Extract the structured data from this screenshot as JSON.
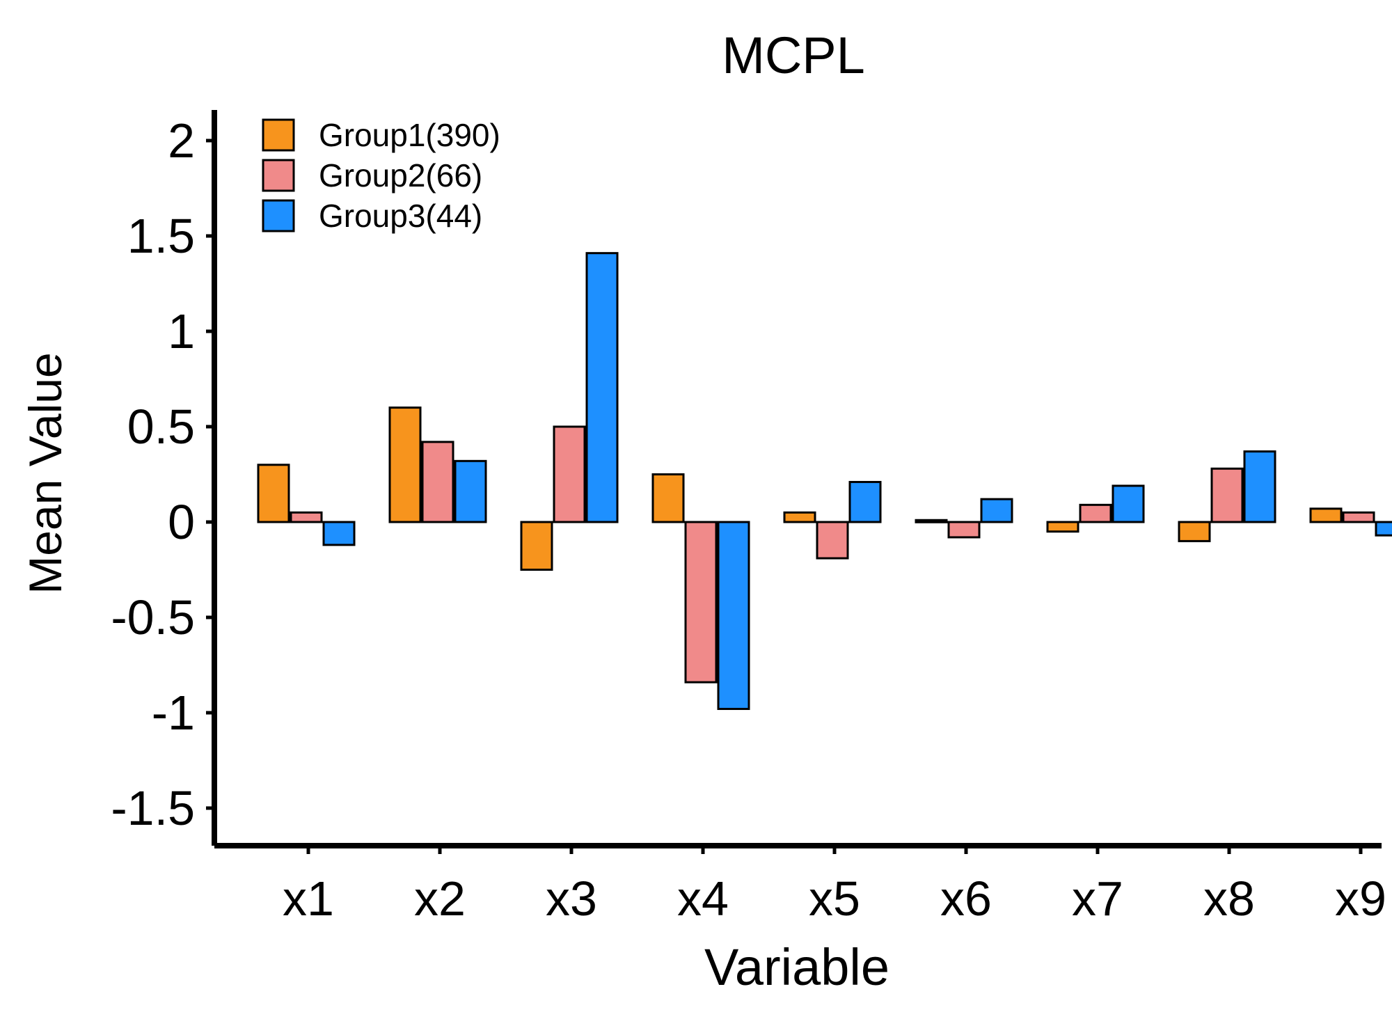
{
  "chart_data": {
    "type": "bar",
    "title": "MCPL",
    "xlabel": "Variable",
    "ylabel": "Mean Value",
    "ylim": [
      -1.65,
      2.15
    ],
    "yticks": [
      -1.5,
      -1,
      -0.5,
      0,
      0.5,
      1,
      1.5,
      2
    ],
    "ytick_labels": [
      "-1.5",
      "-1",
      "-0.5",
      "0",
      "0.5",
      "1",
      "1.5",
      "2"
    ],
    "categories": [
      "x1",
      "x2",
      "x3",
      "x4",
      "x5",
      "x6",
      "x7",
      "x8",
      "x9"
    ],
    "legend_position": "top-left",
    "grid": false,
    "series": [
      {
        "name": "Group1(390)",
        "color": "#F7941D",
        "values": [
          0.3,
          0.6,
          -0.25,
          0.25,
          0.05,
          0.01,
          -0.05,
          -0.1,
          0.07
        ]
      },
      {
        "name": "Group2(66)",
        "color": "#F08A8A",
        "values": [
          0.05,
          0.42,
          0.5,
          -0.84,
          -0.19,
          -0.08,
          0.09,
          0.28,
          0.05
        ]
      },
      {
        "name": "Group3(44)",
        "color": "#1E90FF",
        "values": [
          -0.12,
          0.32,
          1.41,
          -0.98,
          0.21,
          0.12,
          0.19,
          0.37,
          -0.07
        ]
      }
    ]
  }
}
